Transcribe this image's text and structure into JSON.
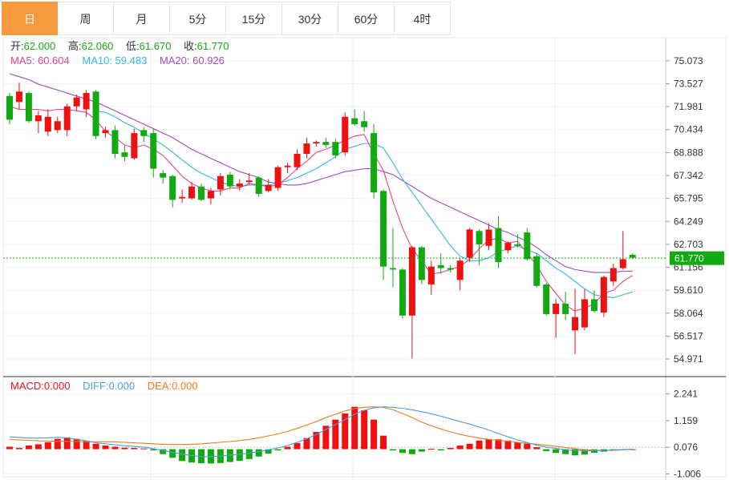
{
  "tabs": [
    {
      "label": "日",
      "active": true
    },
    {
      "label": "周",
      "active": false
    },
    {
      "label": "月",
      "active": false
    },
    {
      "label": "5分",
      "active": false
    },
    {
      "label": "15分",
      "active": false
    },
    {
      "label": "30分",
      "active": false
    },
    {
      "label": "60分",
      "active": false
    },
    {
      "label": "4时",
      "active": false
    }
  ],
  "ohlc_info": {
    "open_label": "开:",
    "open": "62.000",
    "high_label": "高:",
    "high": "62.060",
    "low_label": "低:",
    "low": "61.670",
    "close_label": "收:",
    "close": "61.770"
  },
  "ma_info": {
    "ma5_label": "MA5: ",
    "ma5": "60.604",
    "ma10_label": "MA10: ",
    "ma10": "59.483",
    "ma20_label": "MA20: ",
    "ma20": "60.926"
  },
  "macd_info": {
    "macd_label": "MACD:",
    "macd": "0.000",
    "diff_label": "DIFF:",
    "diff": "0.000",
    "dea_label": "DEA:",
    "dea": "0.000"
  },
  "colors": {
    "up": "#ee1111",
    "down": "#11aa11",
    "ma5": "#e8428f",
    "ma10": "#35b7dc",
    "ma20": "#a24bbf",
    "diff": "#4a9ce0",
    "dea": "#f07a20",
    "last_price_bg": "#11aa11",
    "active_tab": "#f59a3f"
  },
  "chart_data": [
    {
      "type": "candlestick",
      "title": "",
      "ylim": [
        54.0,
        76.2
      ],
      "y_ticks": [
        "75.073",
        "73.527",
        "71.981",
        "70.434",
        "68.888",
        "67.342",
        "65.795",
        "64.249",
        "62.703",
        "61.156",
        "59.610",
        "58.064",
        "56.517",
        "54.971"
      ],
      "y_tick_values": [
        75.073,
        73.527,
        71.981,
        70.434,
        68.888,
        67.342,
        65.795,
        64.249,
        62.703,
        61.156,
        59.61,
        58.064,
        56.517,
        54.971
      ],
      "last_price": 61.77,
      "last_price_label": "61.770",
      "candles": [
        [
          72.7,
          71.1,
          72.9,
          70.8
        ],
        [
          72.3,
          73.0,
          73.6,
          71.8
        ],
        [
          72.9,
          71.0,
          73.0,
          70.9
        ],
        [
          71.0,
          71.4,
          71.7,
          70.2
        ],
        [
          70.3,
          71.3,
          71.8,
          70.0
        ],
        [
          70.4,
          71.0,
          71.3,
          70.2
        ],
        [
          70.4,
          72.0,
          72.2,
          70.0
        ],
        [
          72.0,
          72.6,
          72.8,
          71.7
        ],
        [
          71.8,
          72.9,
          73.1,
          71.3
        ],
        [
          73.0,
          70.0,
          73.1,
          69.8
        ],
        [
          70.2,
          70.4,
          70.6,
          69.9
        ],
        [
          70.4,
          68.8,
          70.7,
          68.5
        ],
        [
          68.9,
          68.6,
          69.4,
          68.3
        ],
        [
          68.5,
          70.2,
          70.5,
          68.4
        ],
        [
          70.4,
          70.0,
          70.6,
          69.6
        ],
        [
          70.2,
          67.8,
          70.5,
          67.2
        ],
        [
          67.5,
          67.2,
          67.7,
          66.8
        ],
        [
          67.3,
          65.7,
          67.4,
          65.2
        ],
        [
          65.8,
          65.9,
          66.4,
          65.5
        ],
        [
          65.8,
          66.6,
          66.9,
          65.7
        ],
        [
          66.6,
          65.7,
          66.8,
          65.6
        ],
        [
          65.8,
          66.3,
          66.5,
          65.4
        ],
        [
          66.4,
          67.3,
          67.5,
          66.0
        ],
        [
          67.4,
          66.6,
          67.6,
          66.4
        ],
        [
          66.6,
          66.8,
          67.1,
          66.3
        ],
        [
          66.9,
          67.0,
          67.5,
          66.7
        ],
        [
          67.2,
          66.1,
          67.3,
          65.9
        ],
        [
          66.3,
          66.7,
          67.1,
          66.2
        ],
        [
          66.5,
          67.9,
          68.0,
          66.3
        ],
        [
          67.9,
          68.0,
          68.2,
          67.5
        ],
        [
          67.9,
          68.8,
          69.1,
          67.7
        ],
        [
          68.8,
          69.5,
          69.9,
          68.5
        ],
        [
          69.5,
          69.6,
          69.7,
          69.3
        ],
        [
          69.6,
          69.4,
          69.9,
          69.2
        ],
        [
          69.6,
          68.7,
          69.8,
          68.5
        ],
        [
          68.9,
          71.3,
          71.6,
          68.7
        ],
        [
          71.2,
          70.8,
          71.8,
          70.7
        ],
        [
          71.0,
          70.6,
          71.7,
          70.3
        ],
        [
          70.2,
          66.2,
          70.8,
          65.8
        ],
        [
          66.3,
          61.2,
          66.4,
          60.3
        ],
        [
          61.1,
          61.0,
          63.8,
          59.8
        ],
        [
          61.0,
          57.9,
          61.1,
          57.7
        ],
        [
          57.9,
          62.5,
          62.6,
          55.0
        ],
        [
          62.5,
          60.3,
          62.6,
          60.0
        ],
        [
          60.0,
          61.2,
          61.6,
          59.3
        ],
        [
          61.3,
          61.1,
          62.1,
          60.7
        ],
        [
          61.1,
          61.0,
          61.3,
          60.8
        ],
        [
          60.3,
          61.6,
          61.8,
          59.6
        ],
        [
          61.8,
          63.7,
          63.8,
          61.5
        ],
        [
          63.6,
          62.7,
          63.7,
          61.3
        ],
        [
          62.6,
          63.7,
          64.1,
          62.3
        ],
        [
          63.8,
          61.5,
          64.6,
          61.1
        ],
        [
          62.3,
          62.8,
          62.9,
          62.1
        ],
        [
          62.7,
          62.6,
          63.4,
          62.5
        ],
        [
          63.5,
          61.7,
          63.8,
          61.6
        ],
        [
          61.9,
          59.9,
          62.1,
          59.8
        ],
        [
          60.0,
          58.0,
          60.1,
          57.9
        ],
        [
          58.0,
          58.7,
          59.0,
          56.4
        ],
        [
          58.7,
          58.0,
          59.5,
          57.6
        ],
        [
          56.9,
          57.8,
          59.7,
          55.3
        ],
        [
          57.1,
          59.0,
          59.7,
          56.9
        ],
        [
          59.0,
          58.2,
          59.6,
          58.1
        ],
        [
          58.1,
          60.5,
          60.6,
          57.8
        ],
        [
          60.2,
          61.1,
          61.4,
          59.9
        ],
        [
          61.1,
          61.7,
          63.6,
          61.0
        ],
        [
          62.0,
          61.8,
          62.1,
          61.7
        ]
      ],
      "ma5": [
        72.0,
        71.8,
        71.8,
        71.8,
        71.7,
        71.8,
        71.8,
        71.7,
        71.6,
        71.1,
        70.3,
        69.9,
        69.4,
        69.2,
        69.4,
        69.1,
        68.7,
        68.0,
        67.3,
        66.8,
        66.5,
        66.3,
        66.3,
        66.5,
        66.5,
        66.8,
        66.7,
        66.6,
        66.7,
        67.2,
        67.8,
        68.3,
        68.9,
        69.1,
        69.4,
        69.7,
        70.0,
        70.1,
        68.8,
        67.7,
        65.6,
        63.8,
        62.4,
        61.6,
        60.7,
        60.8,
        61.0,
        61.2,
        61.7,
        62.4,
        63.0,
        63.1,
        62.8,
        62.9,
        62.1,
        61.3,
        60.2,
        59.4,
        58.6,
        58.2,
        58.4,
        58.7,
        59.4,
        59.6,
        60.2,
        60.6
      ],
      "ma10": [
        null,
        null,
        null,
        null,
        null,
        null,
        null,
        null,
        null,
        71.7,
        71.6,
        71.3,
        70.9,
        70.6,
        70.2,
        69.8,
        69.4,
        68.9,
        68.4,
        67.9,
        67.5,
        67.2,
        66.9,
        66.7,
        66.6,
        66.7,
        66.7,
        66.7,
        66.8,
        67.0,
        67.2,
        67.5,
        67.8,
        68.2,
        68.6,
        69.1,
        69.3,
        69.5,
        69.5,
        69.2,
        68.2,
        67.1,
        66.2,
        65.3,
        64.4,
        63.5,
        62.6,
        61.9,
        61.6,
        61.6,
        61.8,
        62.2,
        62.4,
        62.6,
        62.3,
        62.1,
        61.6,
        61.1,
        60.7,
        60.2,
        59.7,
        59.3,
        59.2,
        59.1,
        59.3,
        59.5
      ],
      "ma20": [
        74.2,
        74.0,
        73.8,
        73.5,
        73.3,
        73.1,
        72.9,
        72.7,
        72.5,
        72.3,
        72.0,
        71.7,
        71.4,
        71.1,
        70.8,
        70.5,
        70.2,
        69.9,
        69.5,
        69.1,
        68.8,
        68.5,
        68.2,
        67.9,
        67.6,
        67.4,
        67.2,
        66.9,
        66.8,
        66.7,
        66.7,
        66.8,
        67.0,
        67.2,
        67.4,
        67.6,
        67.7,
        67.8,
        67.8,
        67.6,
        67.4,
        67.0,
        66.6,
        66.2,
        65.8,
        65.5,
        65.2,
        64.9,
        64.6,
        64.3,
        64.0,
        63.7,
        63.5,
        63.2,
        62.9,
        62.5,
        62.0,
        61.6,
        61.2,
        61.0,
        60.9,
        60.8,
        60.8,
        60.8,
        60.9,
        60.9
      ]
    },
    {
      "type": "bar",
      "title": "MACD",
      "ylim": [
        -1.25,
        2.75
      ],
      "y_ticks": [
        "2.241",
        "1.159",
        "0.076",
        "-1.006"
      ],
      "y_tick_values": [
        2.241,
        1.159,
        0.076,
        -1.006
      ],
      "macd": [
        0.1,
        0.05,
        0.15,
        0.2,
        0.28,
        0.42,
        0.48,
        0.42,
        0.34,
        0.22,
        0.15,
        0.1,
        0.06,
        0.05,
        0.03,
        -0.05,
        -0.2,
        -0.35,
        -0.48,
        -0.54,
        -0.57,
        -0.58,
        -0.56,
        -0.52,
        -0.47,
        -0.4,
        -0.3,
        -0.18,
        -0.05,
        0.1,
        0.25,
        0.45,
        0.7,
        0.95,
        1.2,
        1.45,
        1.72,
        1.58,
        1.2,
        0.55,
        -0.05,
        -0.15,
        -0.2,
        -0.1,
        0.02,
        -0.05,
        0.05,
        0.15,
        0.22,
        0.35,
        0.4,
        0.4,
        0.35,
        0.28,
        0.22,
        0.08,
        -0.08,
        -0.15,
        -0.2,
        -0.25,
        -0.22,
        -0.15,
        -0.1,
        -0.05,
        -0.02,
        0.0
      ],
      "diff": [
        0.5,
        0.48,
        0.45,
        0.45,
        0.46,
        0.48,
        0.46,
        0.4,
        0.34,
        0.26,
        0.22,
        0.18,
        0.14,
        0.12,
        0.08,
        0.02,
        -0.05,
        -0.12,
        -0.2,
        -0.26,
        -0.3,
        -0.3,
        -0.28,
        -0.24,
        -0.2,
        -0.16,
        -0.1,
        -0.02,
        0.05,
        0.15,
        0.28,
        0.42,
        0.6,
        0.8,
        1.0,
        1.2,
        1.42,
        1.58,
        1.68,
        1.72,
        1.7,
        1.66,
        1.6,
        1.52,
        1.44,
        1.34,
        1.23,
        1.12,
        1.02,
        0.9,
        0.78,
        0.64,
        0.5,
        0.38,
        0.27,
        0.16,
        0.08,
        0.03,
        -0.02,
        -0.05,
        -0.06,
        -0.06,
        -0.05,
        -0.03,
        -0.01,
        0.0
      ],
      "dea": [
        0.4,
        0.38,
        0.36,
        0.34,
        0.33,
        0.32,
        0.32,
        0.31,
        0.3,
        0.3,
        0.3,
        0.29,
        0.28,
        0.26,
        0.24,
        0.22,
        0.2,
        0.19,
        0.19,
        0.2,
        0.22,
        0.25,
        0.28,
        0.31,
        0.35,
        0.4,
        0.46,
        0.54,
        0.62,
        0.72,
        0.84,
        0.98,
        1.12,
        1.28,
        1.42,
        1.55,
        1.65,
        1.7,
        1.72,
        1.7,
        1.6,
        1.45,
        1.28,
        1.1,
        0.95,
        0.82,
        0.7,
        0.6,
        0.52,
        0.45,
        0.4,
        0.36,
        0.32,
        0.28,
        0.24,
        0.2,
        0.16,
        0.12,
        0.07,
        0.02,
        -0.02,
        -0.04,
        -0.05,
        -0.05,
        -0.03,
        0.0
      ]
    }
  ]
}
